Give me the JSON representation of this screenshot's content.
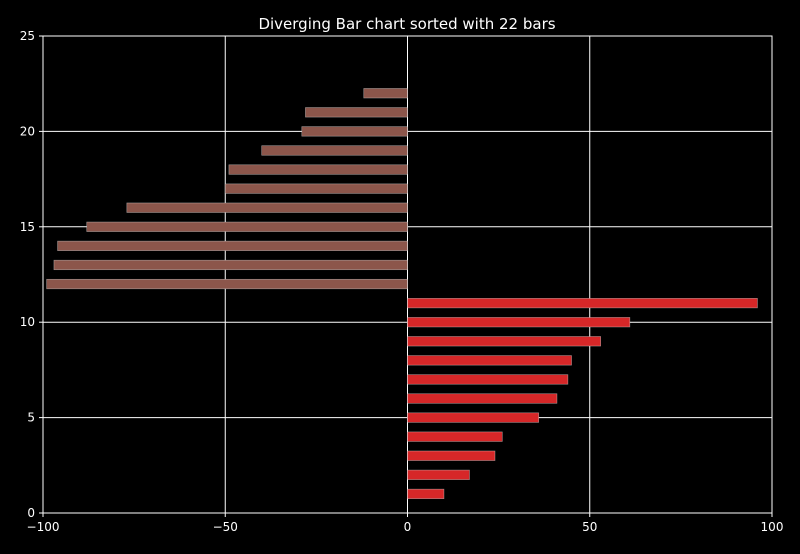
{
  "chart_data": {
    "type": "bar",
    "orientation": "horizontal",
    "title": "Diverging Bar chart sorted with 22 bars",
    "xlabel": "",
    "ylabel": "",
    "xlim": [
      -100,
      100
    ],
    "ylim": [
      0,
      25
    ],
    "x_ticks": [
      -100,
      -50,
      0,
      50,
      100
    ],
    "x_tick_labels": [
      "−100",
      "−50",
      "0",
      "50",
      "100"
    ],
    "y_ticks": [
      0,
      5,
      10,
      15,
      20,
      25
    ],
    "y_tick_labels": [
      "0",
      "5",
      "10",
      "15",
      "20",
      "25"
    ],
    "grid": true,
    "bar_height": 0.5,
    "positions": [
      1,
      2,
      3,
      4,
      5,
      6,
      7,
      8,
      9,
      10,
      11,
      12,
      13,
      14,
      15,
      16,
      17,
      18,
      19,
      20,
      21,
      22
    ],
    "values": [
      10,
      17,
      24,
      26,
      36,
      41,
      44,
      45,
      53,
      61,
      96,
      -99,
      -97,
      -96,
      -88,
      -77,
      -50,
      -49,
      -40,
      -29,
      -28,
      -12
    ],
    "colors": {
      "background": "#000000",
      "text": "#ffffff",
      "grid": "#ffffff",
      "positive": "#d62728",
      "negative": "#8c564b"
    }
  }
}
